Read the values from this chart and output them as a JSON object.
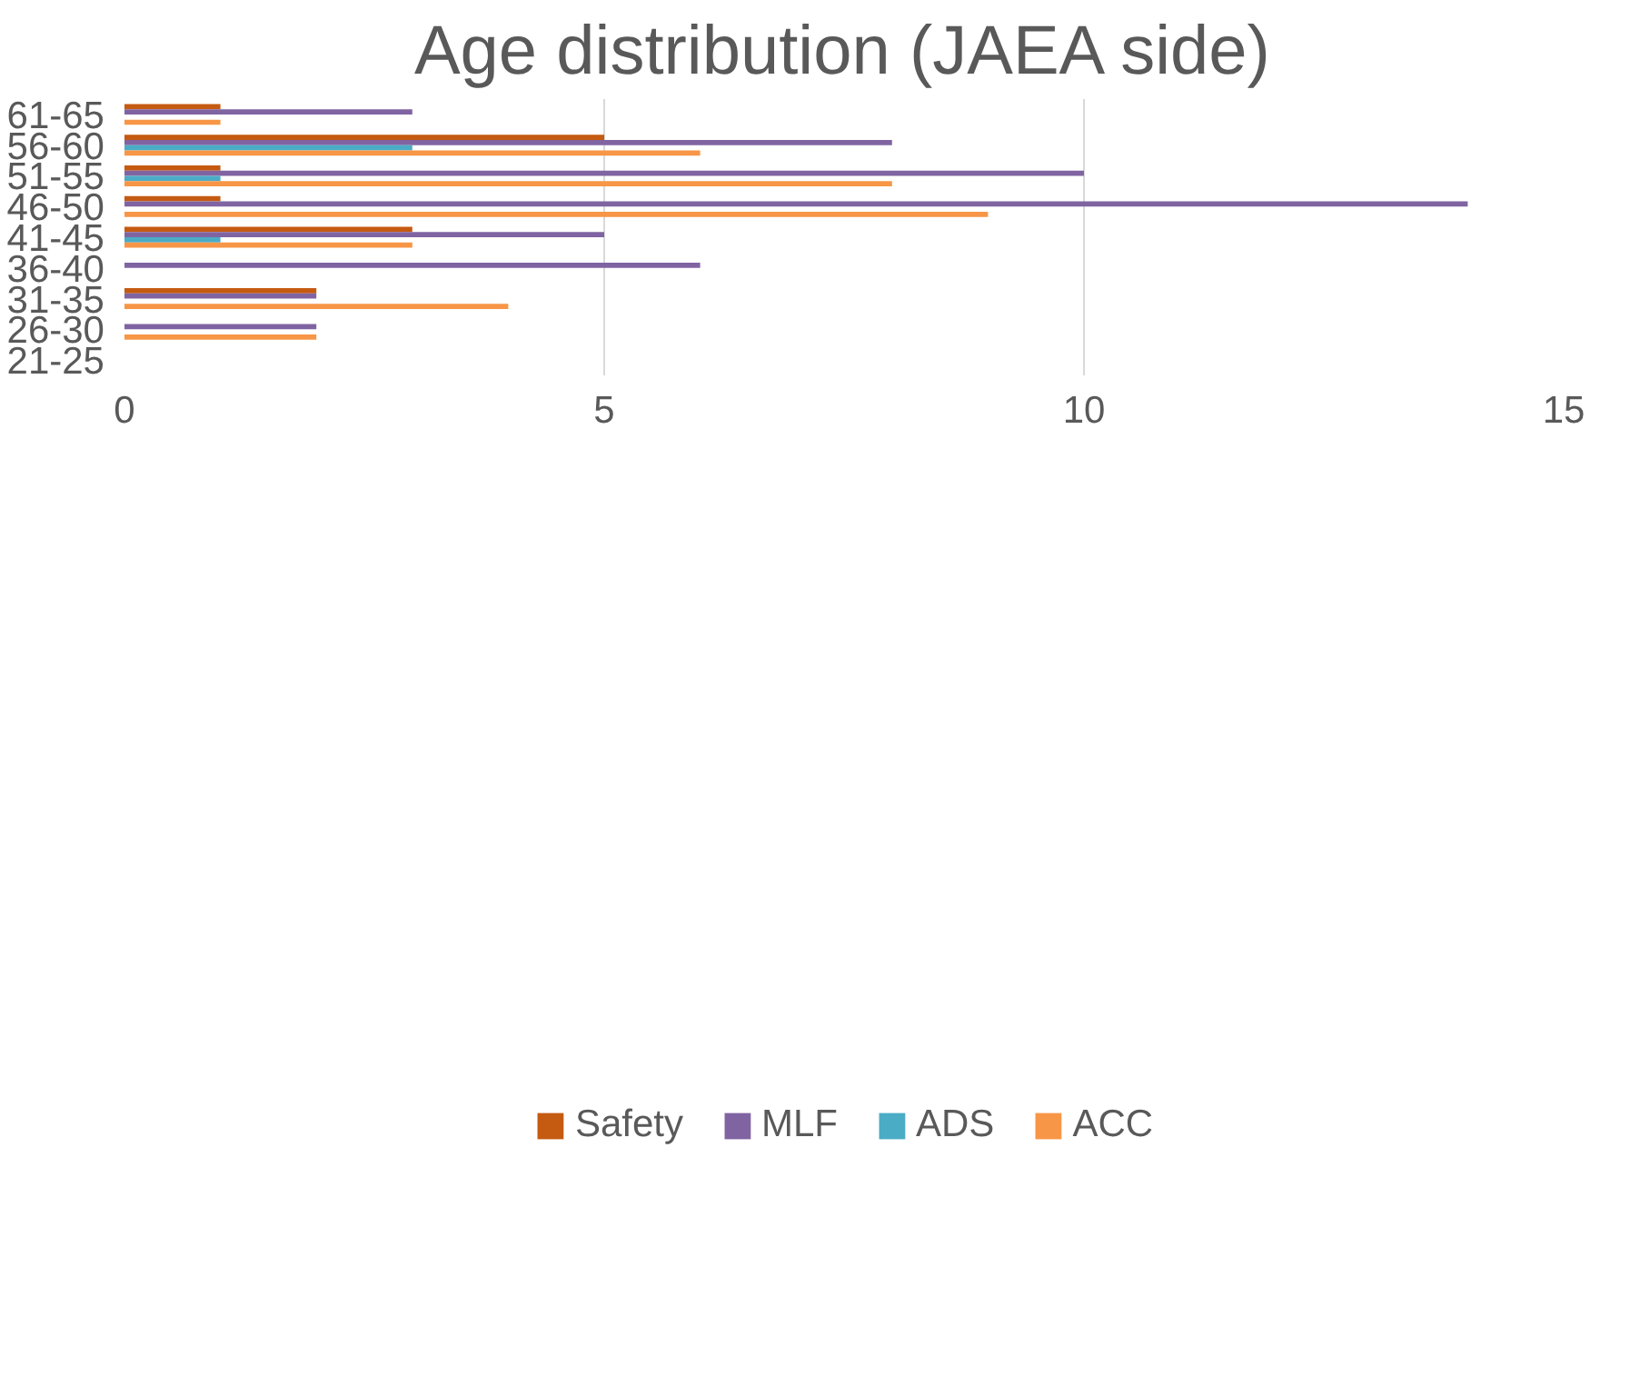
{
  "chart_data": {
    "type": "bar",
    "orientation": "horizontal",
    "title": "Age distribution (JAEA side)",
    "categories": [
      "61-65",
      "56-60",
      "51-55",
      "46-50",
      "41-45",
      "36-40",
      "31-35",
      "26-30",
      "21-25"
    ],
    "series": [
      {
        "name": "Safety",
        "color": "#c55a11",
        "values": [
          1,
          5,
          1,
          1,
          3,
          0,
          2,
          0,
          0
        ]
      },
      {
        "name": "MLF",
        "color": "#8064a2",
        "values": [
          3,
          8,
          10,
          14,
          5,
          6,
          2,
          2,
          0
        ]
      },
      {
        "name": "ADS",
        "color": "#4bacc6",
        "values": [
          0,
          3,
          1,
          0,
          1,
          0,
          0,
          0,
          0
        ]
      },
      {
        "name": "ACC",
        "color": "#f79646",
        "values": [
          1,
          6,
          8,
          9,
          3,
          0,
          4,
          2,
          0
        ]
      }
    ],
    "xlim": [
      0,
      15
    ],
    "xticks": [
      0,
      5,
      10,
      15
    ],
    "grid": "x",
    "legend": "bottom"
  }
}
